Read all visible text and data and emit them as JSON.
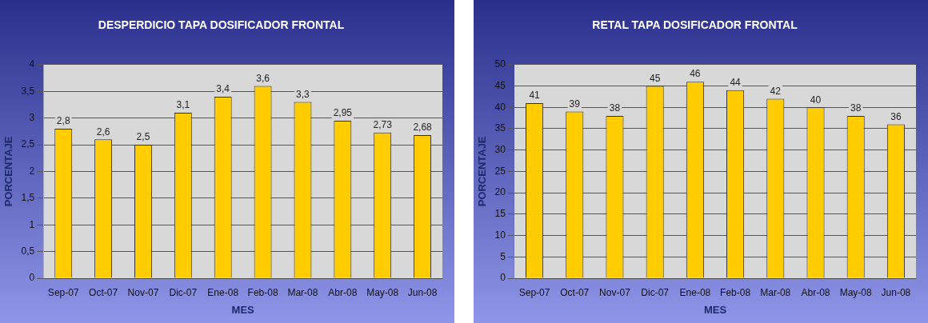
{
  "chart_data": [
    {
      "type": "bar",
      "title": "DESPERDICIO TAPA DOSIFICADOR FRONTAL",
      "xlabel": "MES",
      "ylabel": "PORCENTAJE",
      "categories": [
        "Sep-07",
        "Oct-07",
        "Nov-07",
        "Dic-07",
        "Ene-08",
        "Feb-08",
        "Mar-08",
        "Abr-08",
        "May-08",
        "Jun-08"
      ],
      "values": [
        2.8,
        2.6,
        2.5,
        3.1,
        3.4,
        3.6,
        3.3,
        2.95,
        2.73,
        2.68
      ],
      "value_labels": [
        "2,8",
        "2,6",
        "2,5",
        "3,1",
        "3,4",
        "3,6",
        "3,3",
        "2,95",
        "2,73",
        "2,68"
      ],
      "color": "#ffcc00",
      "ylim": [
        0,
        4
      ],
      "yticks": [
        0,
        {
          "value": 0.5,
          "label": "0,5"
        },
        1,
        {
          "value": 1.5,
          "label": "1,5"
        },
        2,
        {
          "value": 2.5,
          "label": "2,5"
        },
        3,
        {
          "value": 3.5,
          "label": "3,5"
        },
        4
      ],
      "grid": "y",
      "legend": false
    },
    {
      "type": "bar",
      "title": "RETAL TAPA DOSIFICADOR FRONTAL",
      "xlabel": "MES",
      "ylabel": "PORCENTAJE",
      "categories": [
        "Sep-07",
        "Oct-07",
        "Nov-07",
        "Dic-07",
        "Ene-08",
        "Feb-08",
        "Mar-08",
        "Abr-08",
        "May-08",
        "Jun-08"
      ],
      "values": [
        41,
        39,
        38,
        45,
        46,
        44,
        42,
        40,
        38,
        36
      ],
      "data_labels": true,
      "color": "#ffcc00",
      "ylim": [
        0,
        50
      ],
      "yticks": [
        0,
        5,
        10,
        15,
        20,
        25,
        30,
        35,
        40,
        45,
        50
      ],
      "grid": "y",
      "legend": false
    }
  ]
}
